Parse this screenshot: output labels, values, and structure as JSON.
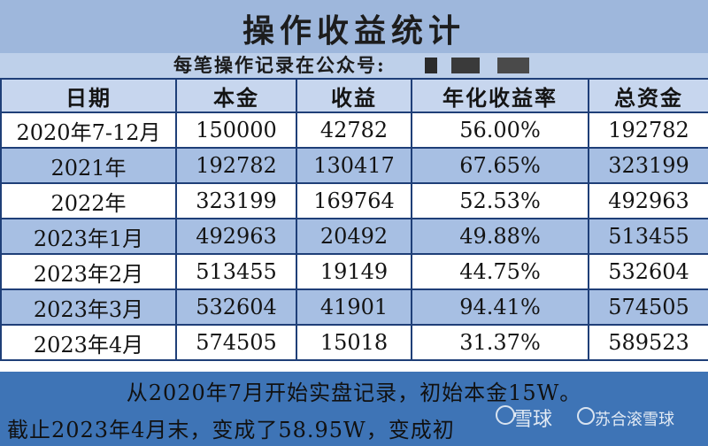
{
  "title": "操作收益统计",
  "subtitle": "每笔操作记录在公众号:",
  "table": {
    "headers": [
      "日期",
      "本金",
      "收益",
      "年化收益率",
      "总资金"
    ],
    "rows": [
      [
        "2020年7-12月",
        "150000",
        "42782",
        "56.00%",
        "192782"
      ],
      [
        "2021年",
        "192782",
        "130417",
        "67.65%",
        "323199"
      ],
      [
        "2022年",
        "323199",
        "169764",
        "52.53%",
        "492963"
      ],
      [
        "2023年1月",
        "492963",
        "20492",
        "49.88%",
        "513455"
      ],
      [
        "2023年2月",
        "513455",
        "19149",
        "44.75%",
        "532604"
      ],
      [
        "2023年3月",
        "532604",
        "41901",
        "94.41%",
        "574505"
      ],
      [
        "2023年4月",
        "574505",
        "15018",
        "31.37%",
        "589523"
      ]
    ]
  },
  "footer": {
    "line1": "从2020年7月开始实盘记录，初始本金15W。",
    "line2": "截止2023年4月末，变成了58.95W，变成初"
  },
  "watermark": {
    "text1": "雪球",
    "text2": "苏合滚雪球"
  },
  "colors": {
    "header_bg": "#9eb7dc",
    "alt_row_bg": "#a7bfe3",
    "border": "#1f3f78",
    "footer_bg": "#3e74b6"
  }
}
